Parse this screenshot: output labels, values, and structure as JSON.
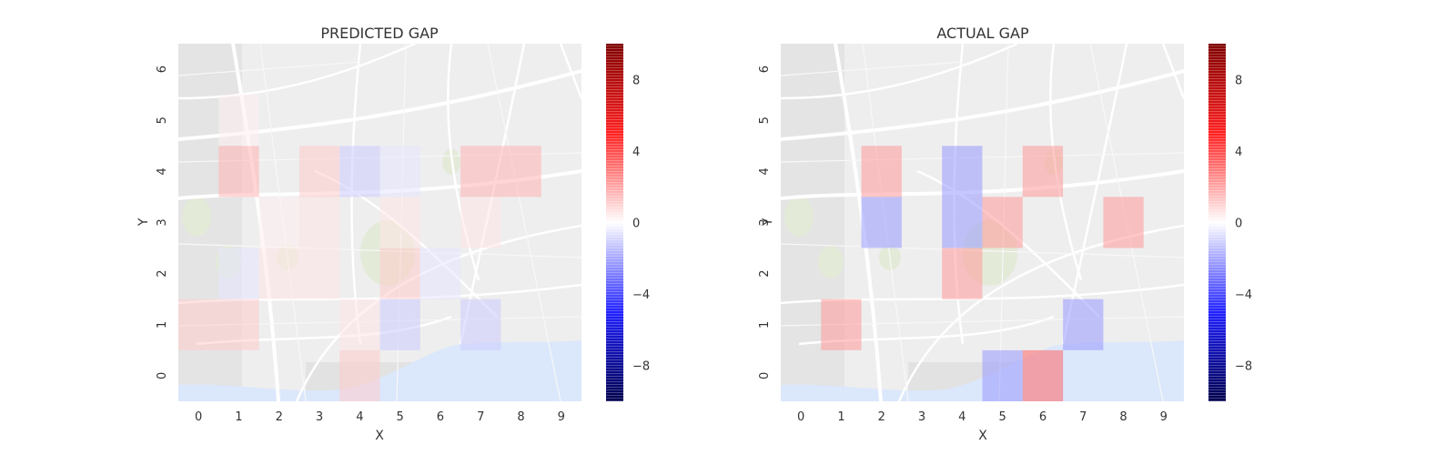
{
  "chart_data": [
    {
      "type": "heatmap",
      "title": "PREDICTED GAP",
      "xlabel": "X",
      "ylabel": "Y",
      "x": [
        "0",
        "1",
        "2",
        "3",
        "4",
        "5",
        "6",
        "7",
        "8",
        "9"
      ],
      "y": [
        "0",
        "1",
        "2",
        "3",
        "4",
        "5",
        "6"
      ],
      "xlim": [
        -0.5,
        9.5
      ],
      "ylim": [
        -0.5,
        6.5
      ],
      "grid": false,
      "background": "street-map",
      "colormap": "seismic",
      "clim": [
        -10,
        10
      ],
      "colorbar_ticks": [
        8,
        4,
        0,
        -4,
        -8
      ],
      "colorbar_ticklabels": [
        "8",
        "4",
        "0",
        "−4",
        "−8"
      ],
      "cells": [
        {
          "x": 0,
          "y": 1,
          "value": 1
        },
        {
          "x": 1,
          "y": 1,
          "value": 1
        },
        {
          "x": 1,
          "y": 2,
          "value": -0.5
        },
        {
          "x": 2,
          "y": 2,
          "value": 0.5
        },
        {
          "x": 2,
          "y": 3,
          "value": 0.3
        },
        {
          "x": 3,
          "y": 2,
          "value": 0.5
        },
        {
          "x": 3,
          "y": 3,
          "value": 0.5
        },
        {
          "x": 3,
          "y": 4,
          "value": 1
        },
        {
          "x": 4,
          "y": 0,
          "value": 1
        },
        {
          "x": 4,
          "y": 1,
          "value": 0.5
        },
        {
          "x": 4,
          "y": 4,
          "value": -1
        },
        {
          "x": 5,
          "y": 1,
          "value": -1
        },
        {
          "x": 5,
          "y": 2,
          "value": 1
        },
        {
          "x": 5,
          "y": 3,
          "value": 0.5
        },
        {
          "x": 5,
          "y": 4,
          "value": -0.5
        },
        {
          "x": 6,
          "y": 2,
          "value": -0.5
        },
        {
          "x": 7,
          "y": 1,
          "value": -1
        },
        {
          "x": 7,
          "y": 3,
          "value": 0.5
        },
        {
          "x": 7,
          "y": 4,
          "value": 1.5
        },
        {
          "x": 8,
          "y": 4,
          "value": 1.5
        },
        {
          "x": 1,
          "y": 4,
          "value": 1.5
        },
        {
          "x": 1,
          "y": 5,
          "value": 0.3
        }
      ]
    },
    {
      "type": "heatmap",
      "title": "ACTUAL GAP",
      "xlabel": "X",
      "ylabel": "Y",
      "x": [
        "0",
        "1",
        "2",
        "3",
        "4",
        "5",
        "6",
        "7",
        "8",
        "9"
      ],
      "y": [
        "0",
        "1",
        "2",
        "3",
        "4",
        "5",
        "6"
      ],
      "xlim": [
        -0.5,
        9.5
      ],
      "ylim": [
        -0.5,
        6.5
      ],
      "grid": false,
      "background": "street-map",
      "colormap": "seismic",
      "clim": [
        -10,
        10
      ],
      "colorbar_ticks": [
        8,
        4,
        0,
        -4,
        -8
      ],
      "colorbar_ticklabels": [
        "8",
        "4",
        "0",
        "−4",
        "−8"
      ],
      "cells": [
        {
          "x": 1,
          "y": 1,
          "value": 2
        },
        {
          "x": 2,
          "y": 3,
          "value": -2
        },
        {
          "x": 2,
          "y": 4,
          "value": 2
        },
        {
          "x": 4,
          "y": 2,
          "value": 2
        },
        {
          "x": 4,
          "y": 3,
          "value": -2
        },
        {
          "x": 4,
          "y": 4,
          "value": -2
        },
        {
          "x": 5,
          "y": 0,
          "value": -2
        },
        {
          "x": 5,
          "y": 3,
          "value": 2
        },
        {
          "x": 6,
          "y": 0,
          "value": 3
        },
        {
          "x": 6,
          "y": 4,
          "value": 2
        },
        {
          "x": 7,
          "y": 1,
          "value": -2
        },
        {
          "x": 8,
          "y": 3,
          "value": 2
        }
      ]
    }
  ]
}
